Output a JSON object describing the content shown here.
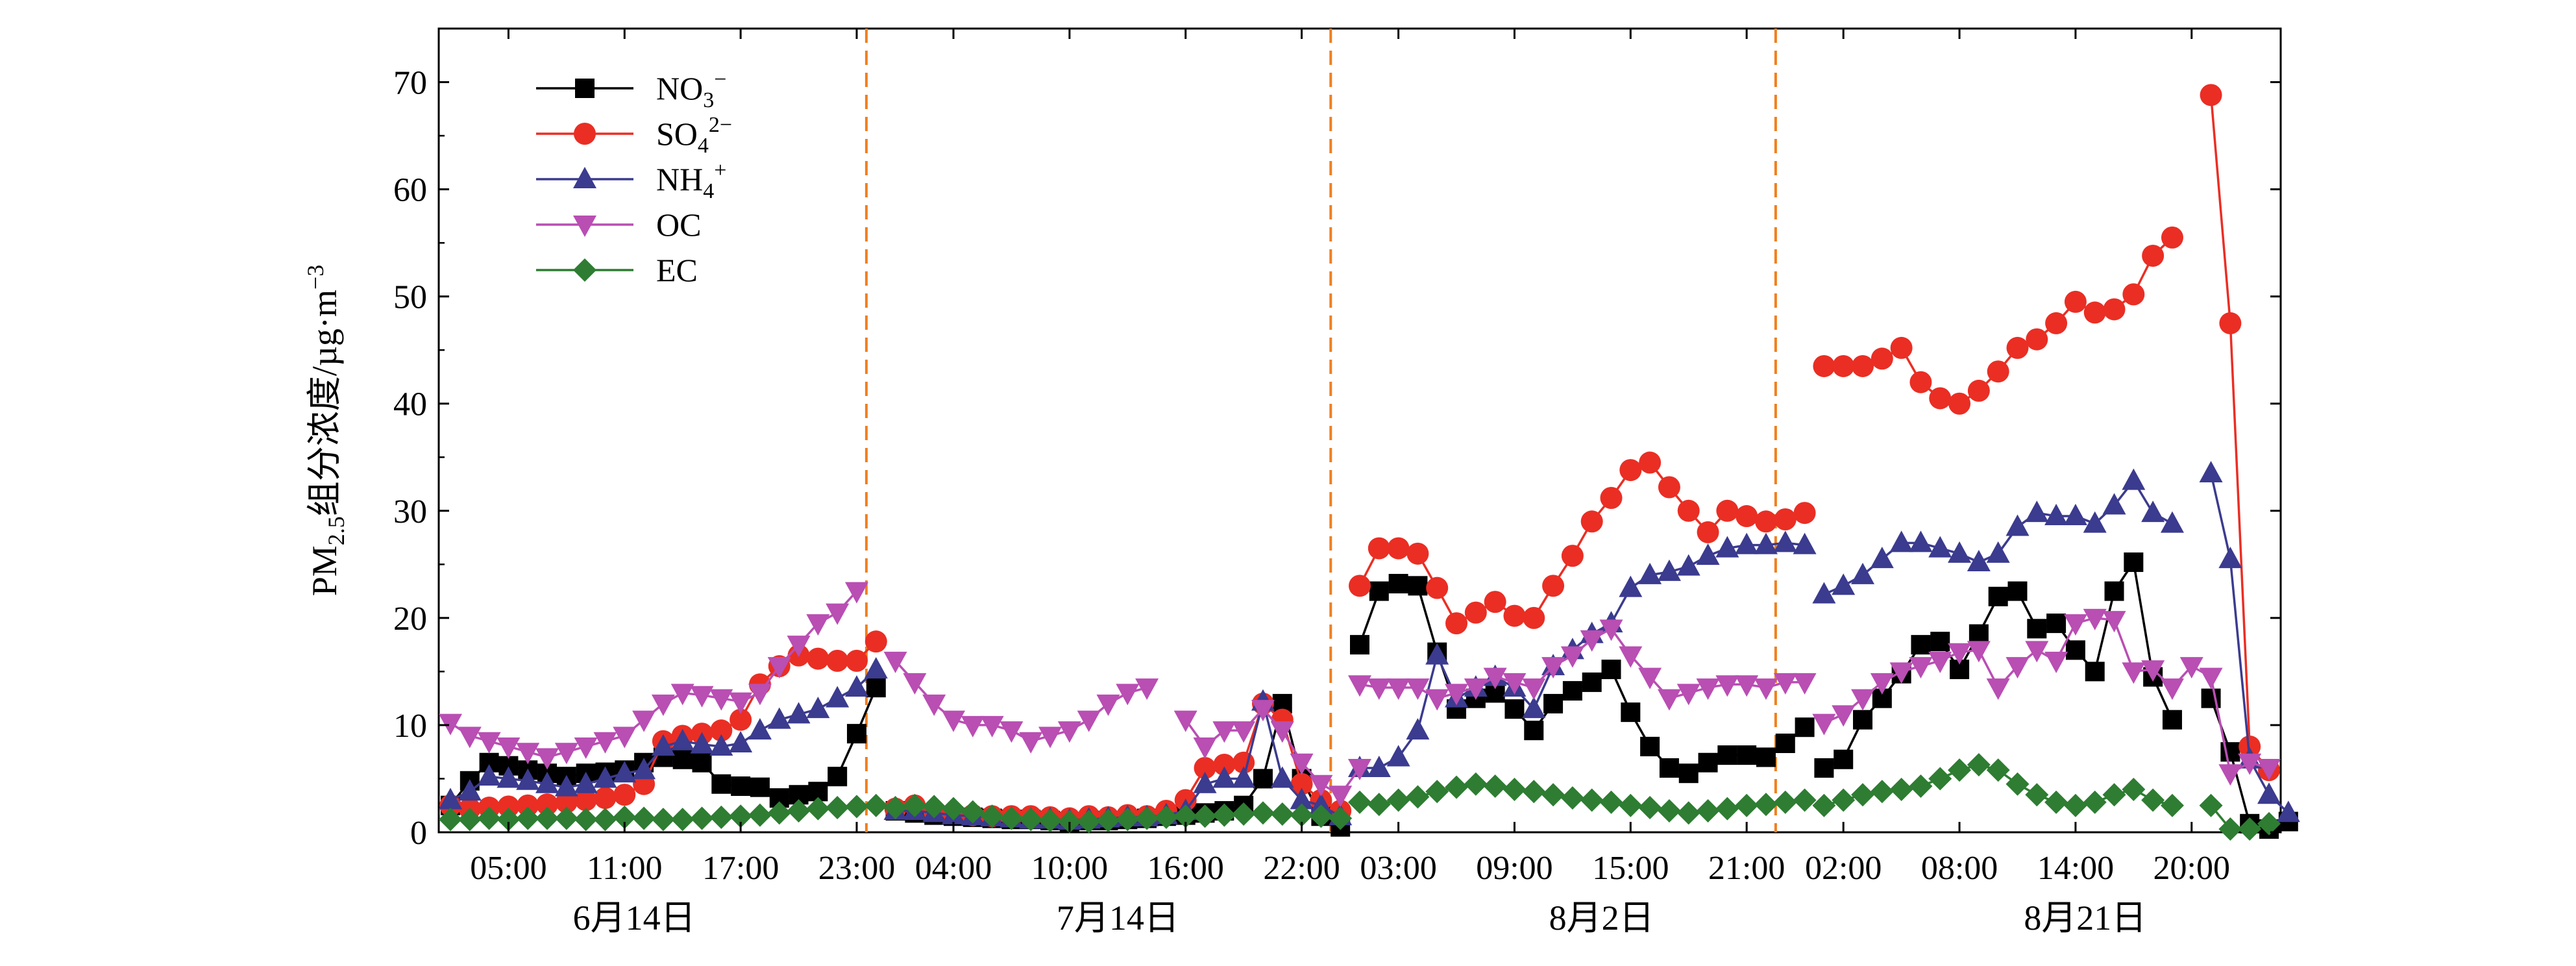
{
  "chart_data": {
    "type": "line",
    "ylabel": "PM2.5组分浓度/µg·m−3",
    "ylabel_parts": {
      "prefix": "PM",
      "sub": "2.5",
      "middle": "组分浓度/µg·m",
      "sup": "−3"
    },
    "ylim": [
      0,
      75
    ],
    "yticks": [
      0,
      10,
      20,
      30,
      40,
      50,
      60,
      70
    ],
    "xlim": [
      0,
      94
    ],
    "xticks": [
      {
        "x": 3,
        "label": "05:00"
      },
      {
        "x": 9,
        "label": "11:00"
      },
      {
        "x": 15,
        "label": "17:00"
      },
      {
        "x": 21,
        "label": "23:00"
      },
      {
        "x": 26,
        "label": "04:00"
      },
      {
        "x": 32,
        "label": "10:00"
      },
      {
        "x": 38,
        "label": "16:00"
      },
      {
        "x": 44,
        "label": "22:00"
      },
      {
        "x": 49,
        "label": "03:00"
      },
      {
        "x": 55,
        "label": "09:00"
      },
      {
        "x": 61,
        "label": "15:00"
      },
      {
        "x": 67,
        "label": "21:00"
      },
      {
        "x": 72,
        "label": "02:00"
      },
      {
        "x": 78,
        "label": "08:00"
      },
      {
        "x": 84,
        "label": "14:00"
      },
      {
        "x": 90,
        "label": "20:00"
      }
    ],
    "date_labels": [
      {
        "x": 9.5,
        "label": "6月14日"
      },
      {
        "x": 34.5,
        "label": "7月14日"
      },
      {
        "x": 59.5,
        "label": "8月2日"
      },
      {
        "x": 84.5,
        "label": "8月21日"
      }
    ],
    "dividers": [
      21.5,
      45.5,
      68.5
    ],
    "legend_position": "top-left",
    "grid": false,
    "series": [
      {
        "key": "no3",
        "name": "NO3−",
        "label_parts": {
          "base": "NO",
          "sub": "3",
          "sup": "−"
        },
        "color": "#000000",
        "marker": "square",
        "segments": [
          {
            "x0": 0,
            "values": [
              2.5,
              4.8,
              6.5,
              6.2,
              5.8,
              5.5,
              5.2,
              5.5,
              5.6,
              5.8,
              6.5,
              7.0,
              6.8,
              6.5,
              4.5,
              4.3,
              4.2,
              3.2,
              3.5,
              3.8,
              5.2,
              9.2,
              13.5
            ]
          },
          {
            "x0": 23,
            "values": [
              2.0,
              1.8,
              1.6,
              1.5,
              1.4,
              1.3,
              1.2,
              1.2,
              1.1,
              1.0,
              1.1,
              1.1,
              1.2,
              1.3,
              1.5,
              1.6,
              1.8,
              2.0,
              2.5,
              5.0,
              12.0,
              5.0,
              1.5,
              0.5
            ]
          },
          {
            "x0": 47,
            "values": [
              17.5,
              22.5,
              23.2,
              23.0,
              16.8,
              11.5,
              12.5,
              13.0,
              11.5,
              9.5,
              12.0,
              13.2,
              14.0,
              15.2,
              11.2,
              8.0,
              6.0,
              5.5,
              6.5,
              7.2,
              7.2,
              7.0,
              8.3,
              9.8
            ]
          },
          {
            "x0": 71,
            "values": [
              6.0,
              6.8,
              10.5,
              12.5,
              14.8,
              17.5,
              17.8,
              15.2,
              18.5,
              22.0,
              22.5,
              19.0,
              19.5,
              17.0,
              15.0,
              22.5,
              25.2,
              14.5,
              10.5,
              null,
              12.5,
              7.5,
              0.8,
              0.3,
              1.0
            ]
          }
        ]
      },
      {
        "key": "so4",
        "name": "SO42−",
        "label_parts": {
          "base": "SO",
          "sub": "4",
          "sup": "2−"
        },
        "color": "#ea2e24",
        "marker": "circle",
        "segments": [
          {
            "x0": 0,
            "values": [
              2.5,
              2.2,
              2.3,
              2.4,
              2.5,
              2.6,
              2.8,
              3.0,
              3.2,
              3.5,
              4.5,
              8.5,
              9.0,
              9.2,
              9.5,
              10.5,
              13.8,
              15.5,
              16.5,
              16.2,
              16.0,
              16.0,
              17.8
            ]
          },
          {
            "x0": 23,
            "values": [
              2.2,
              2.5,
              2.0,
              1.8,
              1.6,
              1.5,
              1.5,
              1.5,
              1.4,
              1.3,
              1.5,
              1.4,
              1.6,
              1.5,
              2.0,
              3.0,
              6.0,
              6.3,
              6.5,
              12.0,
              10.5,
              4.5,
              3.0,
              2.0
            ]
          },
          {
            "x0": 47,
            "values": [
              23.0,
              26.5,
              26.5,
              26.0,
              22.8,
              19.5,
              20.5,
              21.5,
              20.2,
              20.0,
              23.0,
              25.8,
              29.0,
              31.2,
              33.8,
              34.5,
              32.2,
              30.0,
              28.0,
              30.0,
              29.5,
              29.0,
              29.2,
              29.8
            ]
          },
          {
            "x0": 71,
            "values": [
              43.5,
              43.5,
              43.5,
              44.2,
              45.2,
              42.0,
              40.5,
              40.0,
              41.2,
              43.0,
              45.2,
              46.0,
              47.5,
              49.5,
              48.5,
              48.8,
              50.2,
              53.8,
              55.5,
              null,
              68.8,
              47.5,
              8.0,
              5.8
            ]
          }
        ]
      },
      {
        "key": "nh4",
        "name": "NH4+",
        "label_parts": {
          "base": "NH",
          "sub": "4",
          "sup": "+"
        },
        "color": "#3b3b8f",
        "marker": "triangle-up",
        "segments": [
          {
            "x0": 0,
            "values": [
              3.0,
              3.8,
              5.2,
              5.0,
              4.8,
              4.5,
              4.2,
              4.5,
              5.0,
              5.5,
              5.8,
              8.0,
              8.5,
              8.2,
              8.0,
              8.3,
              9.5,
              10.5,
              11.0,
              11.5,
              12.5,
              13.5,
              15.2
            ]
          },
          {
            "x0": 23,
            "values": [
              2.0,
              2.0,
              1.8,
              1.6,
              1.5,
              1.4,
              1.3,
              1.2,
              1.2,
              1.1,
              1.2,
              1.3,
              1.4,
              1.4,
              1.6,
              2.0,
              4.5,
              5.0,
              5.0,
              12.2,
              5.0,
              3.0,
              2.5,
              1.5
            ]
          },
          {
            "x0": 47,
            "values": [
              6.0,
              6.0,
              7.0,
              9.5,
              16.5,
              12.5,
              13.5,
              14.5,
              13.5,
              11.5,
              15.5,
              17.0,
              18.5,
              19.5,
              22.8,
              24.0,
              24.3,
              24.8,
              25.8,
              26.5,
              26.8,
              26.8,
              27.0,
              26.8
            ]
          },
          {
            "x0": 71,
            "values": [
              22.2,
              23.0,
              24.0,
              25.5,
              27.0,
              27.0,
              26.5,
              26.0,
              25.2,
              26.0,
              28.5,
              29.8,
              29.5,
              29.5,
              28.8,
              30.5,
              32.8,
              29.8,
              28.8,
              null,
              33.5,
              25.5,
              6.8,
              3.5,
              1.8
            ]
          }
        ]
      },
      {
        "key": "oc",
        "name": "OC",
        "label_parts": {
          "base": "OC",
          "sub": "",
          "sup": ""
        },
        "color": "#b94eb3",
        "marker": "triangle-down",
        "segments": [
          {
            "x0": 0,
            "values": [
              10.2,
              9.0,
              8.5,
              8.0,
              7.5,
              7.0,
              7.5,
              8.0,
              8.5,
              9.0,
              10.5,
              12.0,
              13.0,
              12.8,
              12.5,
              12.2,
              13.0,
              15.5,
              17.5,
              19.5,
              20.5,
              22.5
            ]
          },
          {
            "x0": 23,
            "values": [
              16.0,
              14.0,
              12.0,
              10.5,
              10.0,
              10.0,
              9.5,
              8.5,
              9.0,
              9.5,
              10.5,
              12.0,
              13.0,
              13.5
            ]
          },
          {
            "x0": 38,
            "values": [
              10.5,
              8.0,
              9.5,
              9.5,
              11.5,
              9.5,
              6.5,
              4.5,
              3.5,
              6.0
            ]
          },
          {
            "x0": 47,
            "values": [
              13.8,
              13.5,
              13.5,
              13.5,
              12.5,
              13.0,
              13.5,
              14.5,
              14.0,
              13.5,
              15.5,
              16.5,
              18.0,
              19.0,
              16.5,
              14.5,
              12.5,
              13.0,
              13.5,
              13.8,
              13.8,
              13.5,
              14.0,
              14.0
            ]
          },
          {
            "x0": 71,
            "values": [
              10.2,
              11.0,
              12.5,
              14.0,
              15.0,
              15.5,
              16.0,
              16.8,
              17.0,
              13.5,
              15.5,
              17.0,
              16.0,
              19.5,
              20.0,
              19.8,
              15.0,
              15.2,
              13.5,
              15.5,
              14.5,
              5.5,
              6.5,
              6.0
            ]
          }
        ]
      },
      {
        "key": "ec",
        "name": "EC",
        "label_parts": {
          "base": "EC",
          "sub": "",
          "sup": ""
        },
        "color": "#2e7d32",
        "marker": "diamond",
        "segments": [
          {
            "x0": 0,
            "values": [
              1.2,
              1.2,
              1.3,
              1.2,
              1.3,
              1.3,
              1.3,
              1.2,
              1.2,
              1.4,
              1.3,
              1.2,
              1.2,
              1.3,
              1.4,
              1.5,
              1.6,
              1.8,
              2.0,
              2.2,
              2.3,
              2.4,
              2.5
            ]
          },
          {
            "x0": 23,
            "values": [
              2.3,
              2.5,
              2.4,
              2.2,
              1.9,
              1.5,
              1.3,
              1.2,
              1.1,
              1.0,
              1.0,
              1.1,
              1.2,
              1.3,
              1.4,
              1.5,
              1.5,
              1.6,
              1.7,
              1.8,
              1.7,
              1.6,
              1.5,
              1.3
            ]
          },
          {
            "x0": 47,
            "values": [
              2.8,
              2.6,
              3.0,
              3.3,
              3.8,
              4.2,
              4.5,
              4.3,
              4.0,
              3.8,
              3.5,
              3.2,
              3.0,
              2.8,
              2.5,
              2.3,
              2.0,
              1.8,
              2.0,
              2.2,
              2.5,
              2.6,
              2.8,
              3.0
            ]
          },
          {
            "x0": 71,
            "values": [
              2.5,
              3.0,
              3.5,
              3.8,
              4.0,
              4.3,
              5.0,
              5.8,
              6.3,
              5.8,
              4.5,
              3.5,
              2.8,
              2.5,
              2.8,
              3.5,
              4.0,
              3.0,
              2.5,
              null,
              2.5,
              0.3,
              0.3,
              0.8
            ]
          }
        ]
      }
    ]
  }
}
